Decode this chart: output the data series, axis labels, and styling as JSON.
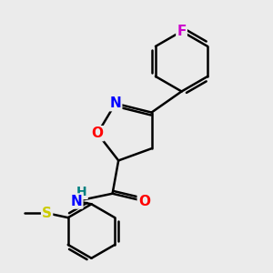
{
  "bg_color": "#ebebeb",
  "atom_colors": {
    "C": "#000000",
    "N": "#0000ff",
    "O": "#ff0000",
    "F": "#cc00cc",
    "S": "#cccc00",
    "H": "#008080"
  },
  "bond_color": "#000000",
  "bond_width": 1.8,
  "font_size_atoms": 11,
  "font_size_small": 10
}
